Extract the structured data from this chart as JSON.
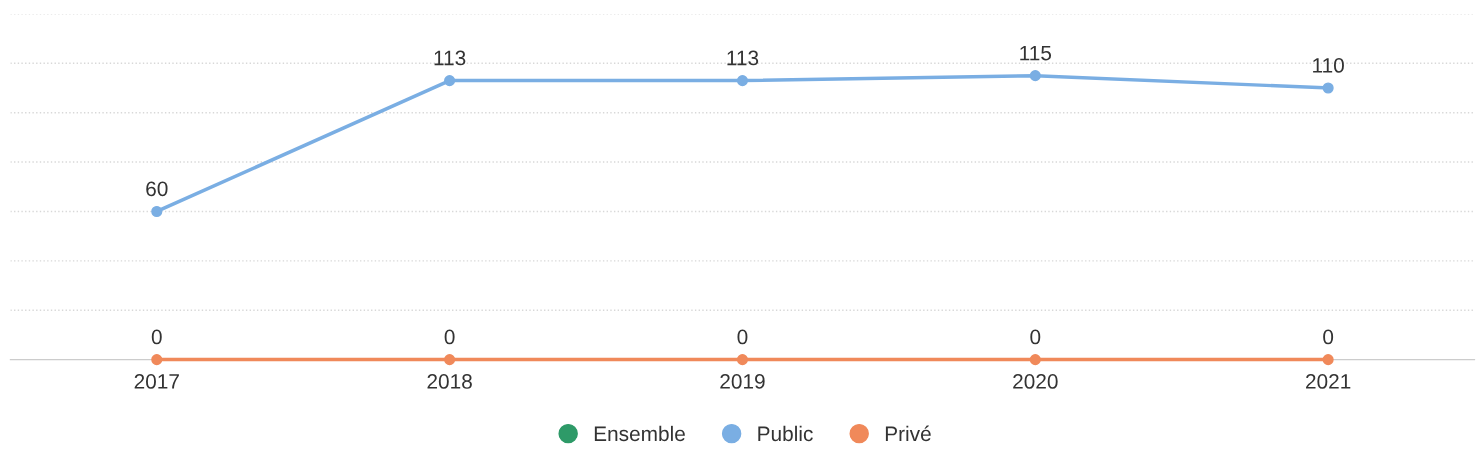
{
  "chart_data": {
    "type": "line",
    "categories": [
      "2017",
      "2018",
      "2019",
      "2020",
      "2021"
    ],
    "series": [
      {
        "name": "Ensemble",
        "color": "#2e9a68",
        "values": [
          null,
          null,
          null,
          null,
          null
        ]
      },
      {
        "name": "Public",
        "color": "#7aaee3",
        "values": [
          60,
          113,
          113,
          115,
          110
        ]
      },
      {
        "name": "Privé",
        "color": "#f0895a",
        "values": [
          0,
          0,
          0,
          0,
          0
        ]
      }
    ],
    "ylim": [
      0,
      140
    ],
    "yticks": [
      0,
      20,
      40,
      60,
      80,
      100,
      120,
      140
    ],
    "tick_labels": "x",
    "grid": "y",
    "legend": "bottom",
    "marker": "circle",
    "line_style": "solid",
    "data_labels": true
  }
}
